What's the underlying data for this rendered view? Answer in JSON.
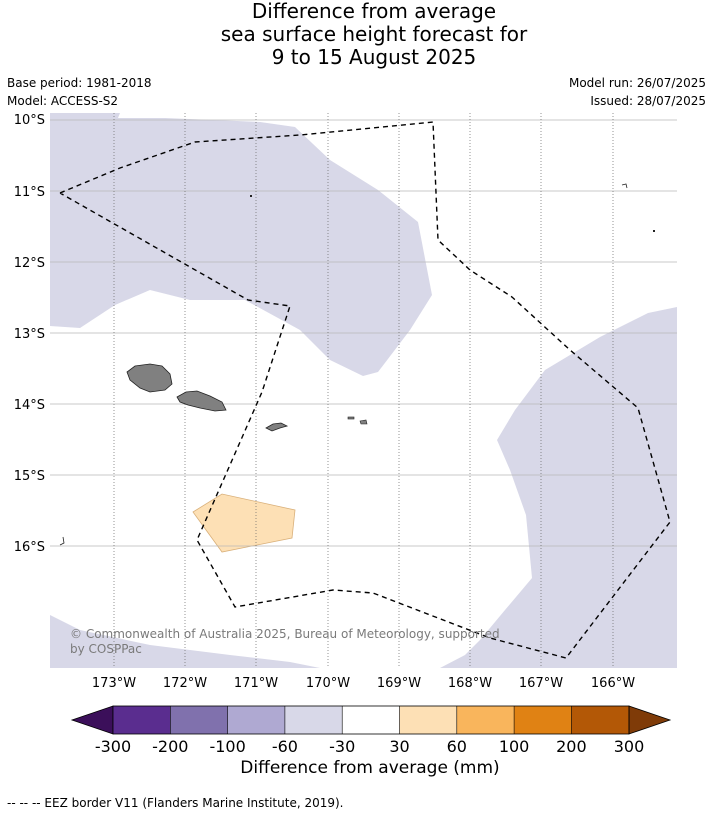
{
  "title": {
    "line1": "Difference from average",
    "line2": "sea surface height forecast for",
    "line3": "9 to 15 August 2025"
  },
  "meta": {
    "base_period": "Base period: 1981-2018",
    "model": "Model: ACCESS-S2",
    "model_run": "Model run: 26/07/2025",
    "issued": "Issued: 28/07/2025"
  },
  "map": {
    "lat_labels": [
      "10°S",
      "11°S",
      "12°S",
      "13°S",
      "14°S",
      "15°S",
      "16°S"
    ],
    "lon_labels": [
      "173°W",
      "172°W",
      "171°W",
      "170°W",
      "169°W",
      "168°W",
      "167°W",
      "166°W"
    ],
    "copyright_line1": "© Commonwealth of Australia 2025, Bureau of Meteorology, supported",
    "copyright_line2": "by COSPPac",
    "colors": {
      "negative_small": "#d8d8e8",
      "positive_small": "#fde0b5",
      "land": "#808080",
      "eez_border": "#000000"
    }
  },
  "colorbar": {
    "ticks": [
      "-300",
      "-200",
      "-100",
      "-60",
      "-30",
      "30",
      "60",
      "100",
      "200",
      "300"
    ],
    "colors": [
      "#3b0f5a",
      "#5a2d8f",
      "#8071ad",
      "#afa9d2",
      "#d8d8e8",
      "#ffffff",
      "#fde0b5",
      "#f9b55c",
      "#e08214",
      "#b35806",
      "#7f3b08"
    ],
    "label": "Difference from average (mm)"
  },
  "footer": {
    "eez_note": "--  --  -- EEZ border V11 (Flanders Marine Institute, 2019)."
  }
}
